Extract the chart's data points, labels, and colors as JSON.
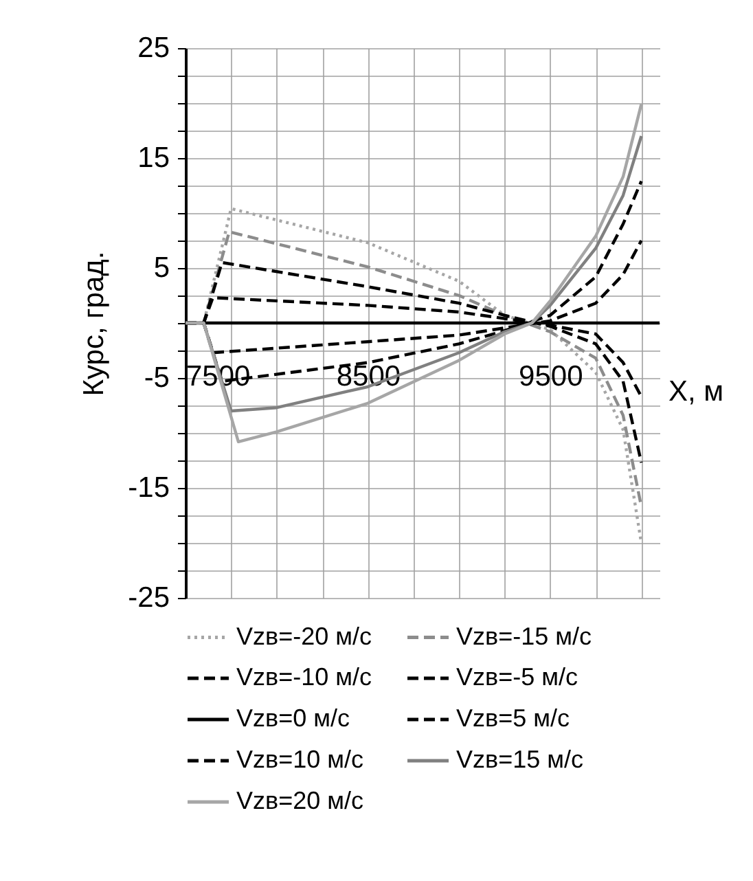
{
  "chart_data": {
    "type": "line",
    "xlabel": "X, м",
    "ylabel": "Курс, град.",
    "xlim": [
      7500,
      10100
    ],
    "ylim": [
      -25,
      25
    ],
    "xticks": [
      7500,
      {
        "value": 7750,
        "label": null
      },
      {
        "value": 8000,
        "label": null
      },
      {
        "value": 8250,
        "label": null
      },
      8500,
      {
        "value": 8750,
        "label": null
      },
      {
        "value": 9000,
        "label": null
      },
      {
        "value": 9250,
        "label": null
      },
      9500,
      {
        "value": 9750,
        "label": null
      },
      {
        "value": 10000,
        "label": null
      }
    ],
    "yticks": [
      -25,
      {
        "value": -22.5,
        "label": null
      },
      {
        "value": -20,
        "label": null
      },
      {
        "value": -17.5,
        "label": null
      },
      -15,
      {
        "value": -12.5,
        "label": null
      },
      {
        "value": -10,
        "label": null
      },
      {
        "value": -7.5,
        "label": null
      },
      -5,
      {
        "value": -2.5,
        "label": null
      },
      {
        "value": 0,
        "label": null
      },
      {
        "value": 2.5,
        "label": null
      },
      5,
      {
        "value": 7.5,
        "label": null
      },
      {
        "value": 10,
        "label": null
      },
      {
        "value": 12.5,
        "label": null
      },
      15,
      {
        "value": 17.5,
        "label": null
      },
      {
        "value": 20,
        "label": null
      },
      {
        "value": 22.5,
        "label": null
      },
      25
    ],
    "grid": true,
    "legend": "bottom",
    "series": [
      {
        "name": "Vzв=-20 м/с",
        "color": "#a6a6a6",
        "line_style": "dotted",
        "x": [
          7500,
          7600,
          7750,
          8500,
          9000,
          9250,
          9500,
          9750,
          9900,
          10000
        ],
        "values": [
          0,
          0,
          10.4,
          7.3,
          3.8,
          0.7,
          -0.6,
          -4.5,
          -9.7,
          -20
        ]
      },
      {
        "name": "Vzв=-15 м/с",
        "color": "#8c8c8c",
        "line_style": "dashed",
        "x": [
          7500,
          7600,
          7740,
          8500,
          9000,
          9250,
          9500,
          9750,
          9900,
          10000
        ],
        "values": [
          0,
          0,
          8.3,
          5.1,
          2.5,
          0.7,
          -0.8,
          -3.2,
          -8.4,
          -16.7
        ]
      },
      {
        "name": "Vzв=-10 м/с",
        "color": "#000000",
        "line_style": "dashed",
        "x": [
          7500,
          7600,
          7700,
          8500,
          9000,
          9250,
          9500,
          9750,
          9900,
          10000
        ],
        "values": [
          0,
          0,
          5.5,
          3.3,
          1.8,
          0.7,
          -0.3,
          -1.9,
          -5.3,
          -12.7
        ]
      },
      {
        "name": "Vzв=-5 м/с",
        "color": "#000000",
        "line_style": "dashed",
        "x": [
          7500,
          7600,
          7650,
          8500,
          9000,
          9500,
          9750,
          9900,
          10000
        ],
        "values": [
          0,
          0,
          2.3,
          1.6,
          1.0,
          -0.2,
          -1.0,
          -3.6,
          -6.7
        ]
      },
      {
        "name": "Vzв=0 м/с",
        "color": "#000000",
        "line_style": "solid",
        "x": [
          7500,
          10100
        ],
        "values": [
          0,
          0
        ]
      },
      {
        "name": "Vzв=5 м/с",
        "color": "#000000",
        "line_style": "dashed",
        "x": [
          7500,
          7600,
          7650,
          8500,
          9000,
          9500,
          9750,
          9900,
          10000
        ],
        "values": [
          0,
          0,
          -2.7,
          -1.7,
          -1.1,
          0.2,
          1.8,
          4.4,
          7.5
        ]
      },
      {
        "name": "Vzв=10 м/с",
        "color": "#000000",
        "line_style": "dashed",
        "x": [
          7500,
          7600,
          7700,
          8500,
          9000,
          9250,
          9500,
          9750,
          9900,
          10000
        ],
        "values": [
          0,
          0,
          -5.3,
          -3.6,
          -1.9,
          -0.7,
          0.7,
          4.2,
          9.0,
          12.9
        ]
      },
      {
        "name": "Vzв=15 м/с",
        "color": "#808080",
        "line_style": "solid",
        "x": [
          7500,
          7600,
          7750,
          8000,
          8500,
          9000,
          9250,
          9400,
          9500,
          9750,
          9900,
          10000
        ],
        "values": [
          0,
          0,
          -8.0,
          -7.7,
          -5.8,
          -2.7,
          -0.8,
          0,
          1.6,
          6.8,
          11.6,
          17.0
        ]
      },
      {
        "name": "Vzв=20 м/с",
        "color": "#a6a6a6",
        "line_style": "solid",
        "x": [
          7500,
          7600,
          7790,
          8000,
          8500,
          9000,
          9250,
          9400,
          9500,
          9750,
          9900,
          10000
        ],
        "values": [
          0,
          0,
          -10.8,
          -9.9,
          -7.3,
          -3.4,
          -1.0,
          0,
          2.0,
          7.9,
          13.3,
          19.9
        ]
      }
    ]
  }
}
